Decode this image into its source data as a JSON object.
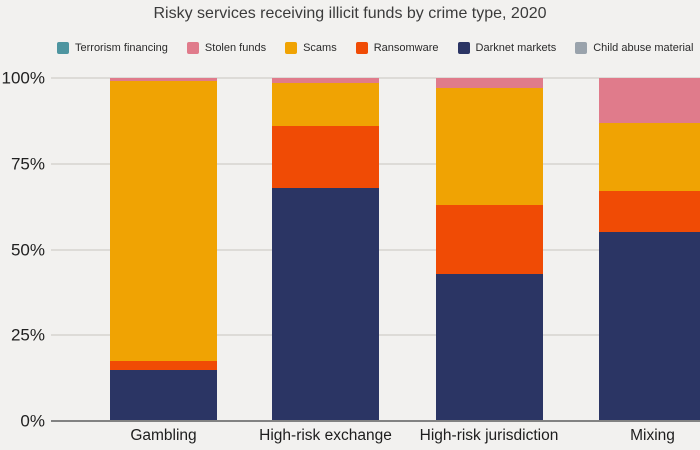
{
  "chart_data": {
    "type": "bar",
    "subtype": "stacked-percentage",
    "title": "Risky services receiving illicit funds by crime type, 2020",
    "categories": [
      "Gambling",
      "High-risk exchange",
      "High-risk jurisdiction",
      "Mixing"
    ],
    "series": [
      {
        "name": "Child abuse material",
        "color": "#9aa3ac",
        "values": [
          0,
          0,
          0,
          0
        ]
      },
      {
        "name": "Darknet markets",
        "color": "#2b3564",
        "values": [
          15,
          68,
          43,
          55
        ]
      },
      {
        "name": "Ransomware",
        "color": "#f04b05",
        "values": [
          2.5,
          18,
          20,
          12
        ]
      },
      {
        "name": "Scams",
        "color": "#f0a303",
        "values": [
          81.5,
          12.5,
          34,
          20
        ]
      },
      {
        "name": "Stolen funds",
        "color": "#e07b8b",
        "values": [
          1,
          1.5,
          3,
          13
        ]
      },
      {
        "name": "Terrorism financing",
        "color": "#4e95a0",
        "values": [
          0,
          0,
          0,
          0
        ]
      }
    ],
    "legend": [
      {
        "label": "Terrorism financing",
        "color": "#4e95a0"
      },
      {
        "label": "Stolen funds",
        "color": "#e07b8b"
      },
      {
        "label": "Scams",
        "color": "#f0a303"
      },
      {
        "label": "Ransomware",
        "color": "#f04b05"
      },
      {
        "label": "Darknet markets",
        "color": "#2b3564"
      },
      {
        "label": "Child abuse material",
        "color": "#9aa3ac"
      }
    ],
    "legend_position": "top",
    "grid": true,
    "ylim": [
      0,
      100
    ],
    "y_ticks": [
      {
        "label": "0%",
        "value": 0
      },
      {
        "label": "25%",
        "value": 25
      },
      {
        "label": "50%",
        "value": 50
      },
      {
        "label": "75%",
        "value": 75
      },
      {
        "label": "100%",
        "value": 100
      }
    ],
    "xlabel": "",
    "ylabel": ""
  }
}
